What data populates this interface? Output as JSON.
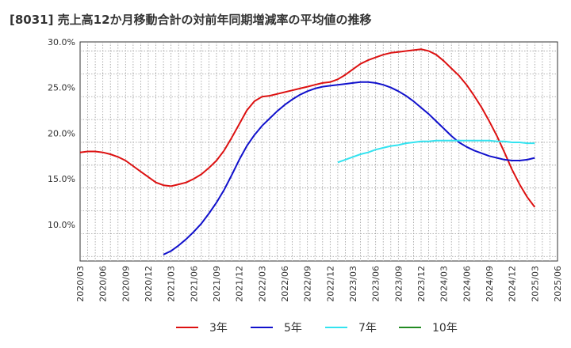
{
  "chart_data": {
    "type": "line",
    "title": "[8031]  売上高12か月移動合計の対前年同期増減率の平均値の推移",
    "x_ticks": [
      "2020/03",
      "2020/06",
      "2020/09",
      "2020/12",
      "2021/03",
      "2021/06",
      "2021/09",
      "2021/12",
      "2022/03",
      "2022/06",
      "2022/09",
      "2022/12",
      "2023/03",
      "2023/06",
      "2023/09",
      "2023/12",
      "2024/03",
      "2024/06",
      "2024/09",
      "2024/12",
      "2025/03",
      "2025/06"
    ],
    "y_ticks": [
      "10.0%",
      "15.0%",
      "20.0%",
      "25.0%",
      "30.0%"
    ],
    "ylim": [
      6.0,
      30.0
    ],
    "grid": true,
    "legend_position": "bottom",
    "series": [
      {
        "name": "3年",
        "color": "#dd1111",
        "points": [
          [
            "2020/03",
            17.9
          ],
          [
            "2020/04",
            18.0
          ],
          [
            "2020/05",
            18.0
          ],
          [
            "2020/06",
            17.9
          ],
          [
            "2020/07",
            17.7
          ],
          [
            "2020/08",
            17.4
          ],
          [
            "2020/09",
            17.0
          ],
          [
            "2020/10",
            16.4
          ],
          [
            "2020/11",
            15.8
          ],
          [
            "2020/12",
            15.2
          ],
          [
            "2021/01",
            14.6
          ],
          [
            "2021/02",
            14.3
          ],
          [
            "2021/03",
            14.2
          ],
          [
            "2021/04",
            14.4
          ],
          [
            "2021/05",
            14.6
          ],
          [
            "2021/06",
            15.0
          ],
          [
            "2021/07",
            15.5
          ],
          [
            "2021/08",
            16.2
          ],
          [
            "2021/09",
            17.0
          ],
          [
            "2021/10",
            18.1
          ],
          [
            "2021/11",
            19.5
          ],
          [
            "2021/12",
            21.0
          ],
          [
            "2022/01",
            22.5
          ],
          [
            "2022/02",
            23.5
          ],
          [
            "2022/03",
            24.0
          ],
          [
            "2022/04",
            24.1
          ],
          [
            "2022/05",
            24.3
          ],
          [
            "2022/06",
            24.5
          ],
          [
            "2022/07",
            24.7
          ],
          [
            "2022/08",
            24.9
          ],
          [
            "2022/09",
            25.1
          ],
          [
            "2022/10",
            25.3
          ],
          [
            "2022/11",
            25.5
          ],
          [
            "2022/12",
            25.6
          ],
          [
            "2023/01",
            25.9
          ],
          [
            "2023/02",
            26.4
          ],
          [
            "2023/03",
            27.0
          ],
          [
            "2023/04",
            27.6
          ],
          [
            "2023/05",
            28.0
          ],
          [
            "2023/06",
            28.3
          ],
          [
            "2023/07",
            28.6
          ],
          [
            "2023/08",
            28.8
          ],
          [
            "2023/09",
            28.9
          ],
          [
            "2023/10",
            29.0
          ],
          [
            "2023/11",
            29.1
          ],
          [
            "2023/12",
            29.2
          ],
          [
            "2024/01",
            29.0
          ],
          [
            "2024/02",
            28.6
          ],
          [
            "2024/03",
            27.9
          ],
          [
            "2024/04",
            27.1
          ],
          [
            "2024/05",
            26.3
          ],
          [
            "2024/06",
            25.3
          ],
          [
            "2024/07",
            24.1
          ],
          [
            "2024/08",
            22.8
          ],
          [
            "2024/09",
            21.3
          ],
          [
            "2024/10",
            19.7
          ],
          [
            "2024/11",
            17.9
          ],
          [
            "2024/12",
            16.0
          ],
          [
            "2025/01",
            14.4
          ],
          [
            "2025/02",
            13.0
          ],
          [
            "2025/03",
            11.9
          ]
        ]
      },
      {
        "name": "5年",
        "color": "#1111cc",
        "points": [
          [
            "2021/02",
            6.7
          ],
          [
            "2021/03",
            7.1
          ],
          [
            "2021/04",
            7.7
          ],
          [
            "2021/05",
            8.4
          ],
          [
            "2021/06",
            9.2
          ],
          [
            "2021/07",
            10.1
          ],
          [
            "2021/08",
            11.2
          ],
          [
            "2021/09",
            12.4
          ],
          [
            "2021/10",
            13.8
          ],
          [
            "2021/11",
            15.4
          ],
          [
            "2021/12",
            17.1
          ],
          [
            "2022/01",
            18.6
          ],
          [
            "2022/02",
            19.8
          ],
          [
            "2022/03",
            20.8
          ],
          [
            "2022/04",
            21.6
          ],
          [
            "2022/05",
            22.4
          ],
          [
            "2022/06",
            23.1
          ],
          [
            "2022/07",
            23.7
          ],
          [
            "2022/08",
            24.2
          ],
          [
            "2022/09",
            24.6
          ],
          [
            "2022/10",
            24.9
          ],
          [
            "2022/11",
            25.1
          ],
          [
            "2022/12",
            25.2
          ],
          [
            "2023/01",
            25.3
          ],
          [
            "2023/02",
            25.4
          ],
          [
            "2023/03",
            25.5
          ],
          [
            "2023/04",
            25.6
          ],
          [
            "2023/05",
            25.6
          ],
          [
            "2023/06",
            25.5
          ],
          [
            "2023/07",
            25.3
          ],
          [
            "2023/08",
            25.0
          ],
          [
            "2023/09",
            24.6
          ],
          [
            "2023/10",
            24.1
          ],
          [
            "2023/11",
            23.5
          ],
          [
            "2023/12",
            22.8
          ],
          [
            "2024/01",
            22.1
          ],
          [
            "2024/02",
            21.3
          ],
          [
            "2024/03",
            20.5
          ],
          [
            "2024/04",
            19.7
          ],
          [
            "2024/05",
            19.0
          ],
          [
            "2024/06",
            18.5
          ],
          [
            "2024/07",
            18.1
          ],
          [
            "2024/08",
            17.8
          ],
          [
            "2024/09",
            17.5
          ],
          [
            "2024/10",
            17.3
          ],
          [
            "2024/11",
            17.1
          ],
          [
            "2024/12",
            17.0
          ],
          [
            "2025/01",
            17.0
          ],
          [
            "2025/02",
            17.1
          ],
          [
            "2025/03",
            17.3
          ]
        ]
      },
      {
        "name": "7年",
        "color": "#33e3f0",
        "points": [
          [
            "2023/01",
            16.8
          ],
          [
            "2023/02",
            17.1
          ],
          [
            "2023/03",
            17.4
          ],
          [
            "2023/04",
            17.7
          ],
          [
            "2023/05",
            17.9
          ],
          [
            "2023/06",
            18.2
          ],
          [
            "2023/07",
            18.4
          ],
          [
            "2023/08",
            18.6
          ],
          [
            "2023/09",
            18.7
          ],
          [
            "2023/10",
            18.9
          ],
          [
            "2023/11",
            19.0
          ],
          [
            "2023/12",
            19.1
          ],
          [
            "2024/01",
            19.1
          ],
          [
            "2024/02",
            19.2
          ],
          [
            "2024/03",
            19.2
          ],
          [
            "2024/04",
            19.2
          ],
          [
            "2024/05",
            19.2
          ],
          [
            "2024/06",
            19.2
          ],
          [
            "2024/07",
            19.2
          ],
          [
            "2024/08",
            19.2
          ],
          [
            "2024/09",
            19.2
          ],
          [
            "2024/10",
            19.1
          ],
          [
            "2024/11",
            19.1
          ],
          [
            "2024/12",
            19.0
          ],
          [
            "2025/01",
            19.0
          ],
          [
            "2025/02",
            18.9
          ],
          [
            "2025/03",
            18.9
          ]
        ]
      },
      {
        "name": "10年",
        "color": "#228b22",
        "points": []
      }
    ]
  }
}
